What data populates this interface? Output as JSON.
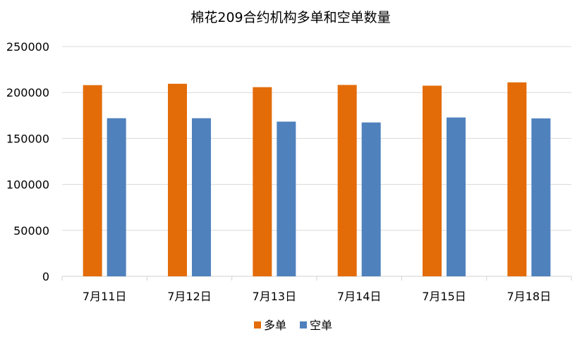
{
  "chart_data": {
    "type": "bar",
    "title": "棉花209合约机构多单和空单数量",
    "categories": [
      "7月11日",
      "7月12日",
      "7月13日",
      "7月14日",
      "7月15日",
      "7月18日"
    ],
    "series": [
      {
        "name": "多单",
        "color": "#E36C09",
        "values": [
          208000,
          209500,
          205800,
          208200,
          207400,
          211000
        ]
      },
      {
        "name": "空单",
        "color": "#4F81BD",
        "values": [
          172000,
          172000,
          168300,
          167400,
          172800,
          171800
        ]
      }
    ],
    "ylim": [
      0,
      250000
    ],
    "yticks": [
      0,
      50000,
      100000,
      150000,
      200000,
      250000
    ],
    "ytick_labels": [
      "0",
      "50000",
      "100000",
      "150000",
      "200000",
      "250000"
    ],
    "xlabel": "",
    "ylabel": "",
    "grid": true,
    "legend_position": "bottom"
  }
}
